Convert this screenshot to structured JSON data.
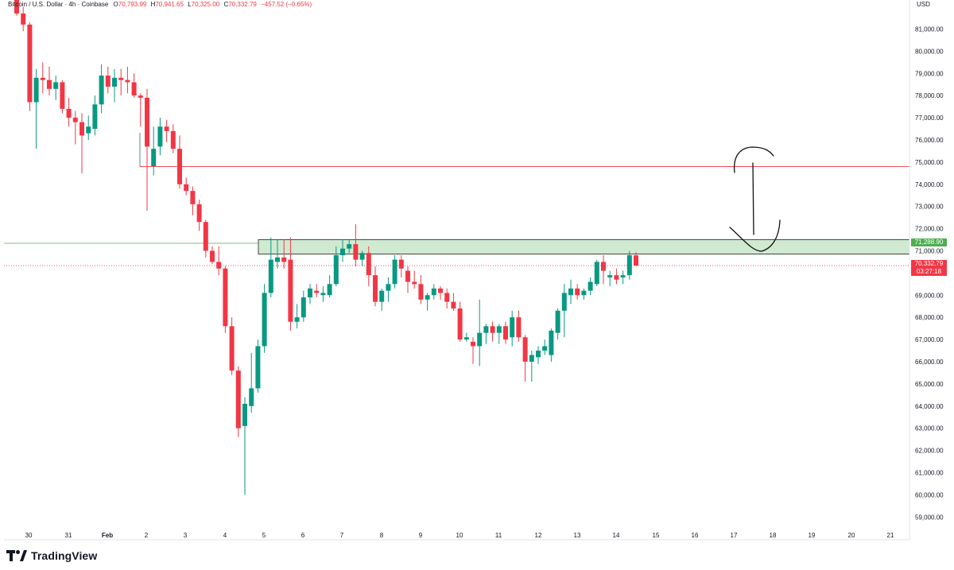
{
  "legend": {
    "symbol": "Bitcoin / U.S. Dollar · 4h · Coinbase",
    "o_label": "O",
    "o_value": "70,793.99",
    "h_label": "H",
    "h_value": "70,941.65",
    "l_label": "L",
    "l_value": "70,325.00",
    "c_label": "C",
    "c_value": "70,332.79",
    "change": "−457.52 (−0.65%)"
  },
  "currency": "USD",
  "brand": "TradingView",
  "badges": {
    "zone_price": "71,288.90",
    "last_price": "70,332.79",
    "countdown": "03:27:18"
  },
  "colors": {
    "up": "#089981",
    "down": "#f23645",
    "zone": "#c8e6c9",
    "zone_border": "#1b1b1b",
    "level": "#f23645"
  },
  "chart_data": {
    "type": "candlestick",
    "timeframe": "4h",
    "x_ticks": [
      "30",
      "31",
      "Feb",
      "2",
      "3",
      "4",
      "5",
      "6",
      "7",
      "8",
      "9",
      "10",
      "11",
      "12",
      "13",
      "14",
      "15",
      "16",
      "17",
      "18",
      "19",
      "20",
      "21"
    ],
    "y_ticks": [
      "59,000.00",
      "60,000.00",
      "61,000.00",
      "62,000.00",
      "63,000.00",
      "64,000.00",
      "65,000.00",
      "66,000.00",
      "67,000.00",
      "68,000.00",
      "69,000.00",
      "70,000.00",
      "71,000.00",
      "72,000.00",
      "73,000.00",
      "74,000.00",
      "75,000.00",
      "76,000.00",
      "77,000.00",
      "78,000.00",
      "79,000.00",
      "80,000.00",
      "81,000.00"
    ],
    "ylim": [
      58400,
      82200
    ],
    "resistance_zone": [
      70850,
      71500
    ],
    "horizontal_level": 74800,
    "last_close": 70332.79,
    "candles": [
      {
        "o": 82500,
        "h": 82800,
        "l": 81600,
        "c": 81700
      },
      {
        "o": 81700,
        "h": 82000,
        "l": 80900,
        "c": 81200
      },
      {
        "o": 81200,
        "h": 81300,
        "l": 77300,
        "c": 77700
      },
      {
        "o": 77700,
        "h": 79200,
        "l": 75600,
        "c": 78800
      },
      {
        "o": 78800,
        "h": 79500,
        "l": 78100,
        "c": 78700
      },
      {
        "o": 78700,
        "h": 79300,
        "l": 78000,
        "c": 78300
      },
      {
        "o": 78300,
        "h": 78900,
        "l": 77800,
        "c": 78600
      },
      {
        "o": 78600,
        "h": 78700,
        "l": 77200,
        "c": 77400
      },
      {
        "o": 77400,
        "h": 77900,
        "l": 76600,
        "c": 77000
      },
      {
        "o": 77000,
        "h": 77300,
        "l": 75800,
        "c": 76800
      },
      {
        "o": 76800,
        "h": 77200,
        "l": 74500,
        "c": 76200
      },
      {
        "o": 76300,
        "h": 77100,
        "l": 76000,
        "c": 76600
      },
      {
        "o": 76500,
        "h": 78000,
        "l": 76200,
        "c": 77600
      },
      {
        "o": 77600,
        "h": 79400,
        "l": 77200,
        "c": 78900
      },
      {
        "o": 78900,
        "h": 79300,
        "l": 78100,
        "c": 78400
      },
      {
        "o": 78400,
        "h": 79200,
        "l": 77700,
        "c": 78800
      },
      {
        "o": 78800,
        "h": 79200,
        "l": 78000,
        "c": 78700
      },
      {
        "o": 78700,
        "h": 79300,
        "l": 78100,
        "c": 78600
      },
      {
        "o": 78600,
        "h": 79000,
        "l": 77900,
        "c": 78000
      },
      {
        "o": 78000,
        "h": 78100,
        "l": 76600,
        "c": 77900
      },
      {
        "o": 77900,
        "h": 78300,
        "l": 72800,
        "c": 75700
      },
      {
        "o": 74800,
        "h": 76600,
        "l": 74400,
        "c": 75600
      },
      {
        "o": 75700,
        "h": 77000,
        "l": 75300,
        "c": 76600
      },
      {
        "o": 76600,
        "h": 76900,
        "l": 75900,
        "c": 76400
      },
      {
        "o": 76400,
        "h": 76700,
        "l": 75400,
        "c": 75600
      },
      {
        "o": 75600,
        "h": 76200,
        "l": 73800,
        "c": 74000
      },
      {
        "o": 74000,
        "h": 74300,
        "l": 73500,
        "c": 73700
      },
      {
        "o": 73700,
        "h": 73900,
        "l": 72600,
        "c": 73100
      },
      {
        "o": 73100,
        "h": 73300,
        "l": 71900,
        "c": 72300
      },
      {
        "o": 72300,
        "h": 72400,
        "l": 70700,
        "c": 71000
      },
      {
        "o": 71000,
        "h": 71200,
        "l": 70400,
        "c": 70500
      },
      {
        "o": 70500,
        "h": 71200,
        "l": 69900,
        "c": 70200
      },
      {
        "o": 70200,
        "h": 70300,
        "l": 67300,
        "c": 67600
      },
      {
        "o": 67600,
        "h": 68000,
        "l": 65400,
        "c": 65600
      },
      {
        "o": 65600,
        "h": 65800,
        "l": 62600,
        "c": 63000
      },
      {
        "o": 63100,
        "h": 64400,
        "l": 60000,
        "c": 64100
      },
      {
        "o": 64000,
        "h": 66400,
        "l": 63700,
        "c": 64800
      },
      {
        "o": 64800,
        "h": 67000,
        "l": 64600,
        "c": 66700
      },
      {
        "o": 66700,
        "h": 69500,
        "l": 66400,
        "c": 69100
      },
      {
        "o": 69100,
        "h": 71600,
        "l": 68900,
        "c": 70600
      },
      {
        "o": 70500,
        "h": 71500,
        "l": 70200,
        "c": 70700
      },
      {
        "o": 70700,
        "h": 71500,
        "l": 70200,
        "c": 70500
      },
      {
        "o": 70600,
        "h": 71600,
        "l": 67400,
        "c": 67800
      },
      {
        "o": 67800,
        "h": 68600,
        "l": 67500,
        "c": 68000
      },
      {
        "o": 68000,
        "h": 69200,
        "l": 67800,
        "c": 68900
      },
      {
        "o": 68900,
        "h": 69500,
        "l": 68600,
        "c": 69300
      },
      {
        "o": 69200,
        "h": 69500,
        "l": 68900,
        "c": 69100
      },
      {
        "o": 69000,
        "h": 69400,
        "l": 68700,
        "c": 69100
      },
      {
        "o": 69000,
        "h": 69900,
        "l": 68900,
        "c": 69500
      },
      {
        "o": 69500,
        "h": 71200,
        "l": 69400,
        "c": 70800
      },
      {
        "o": 70800,
        "h": 71500,
        "l": 70500,
        "c": 71100
      },
      {
        "o": 71100,
        "h": 71500,
        "l": 70900,
        "c": 71300
      },
      {
        "o": 71300,
        "h": 72200,
        "l": 70300,
        "c": 70600
      },
      {
        "o": 70600,
        "h": 71000,
        "l": 70300,
        "c": 70900
      },
      {
        "o": 70900,
        "h": 71200,
        "l": 69400,
        "c": 69900
      },
      {
        "o": 69900,
        "h": 70300,
        "l": 68500,
        "c": 68700
      },
      {
        "o": 68700,
        "h": 69300,
        "l": 68300,
        "c": 69200
      },
      {
        "o": 69200,
        "h": 69800,
        "l": 68700,
        "c": 69500
      },
      {
        "o": 69500,
        "h": 70800,
        "l": 69300,
        "c": 70600
      },
      {
        "o": 70600,
        "h": 70800,
        "l": 69800,
        "c": 70200
      },
      {
        "o": 70100,
        "h": 70300,
        "l": 69100,
        "c": 69600
      },
      {
        "o": 69600,
        "h": 70100,
        "l": 69300,
        "c": 69500
      },
      {
        "o": 69500,
        "h": 69900,
        "l": 68600,
        "c": 68800
      },
      {
        "o": 68800,
        "h": 69100,
        "l": 68300,
        "c": 69000
      },
      {
        "o": 69000,
        "h": 69500,
        "l": 68800,
        "c": 69300
      },
      {
        "o": 69300,
        "h": 69400,
        "l": 68800,
        "c": 69100
      },
      {
        "o": 69100,
        "h": 69300,
        "l": 68400,
        "c": 68700
      },
      {
        "o": 68700,
        "h": 69100,
        "l": 68300,
        "c": 68400
      },
      {
        "o": 68400,
        "h": 68700,
        "l": 66900,
        "c": 67000
      },
      {
        "o": 67000,
        "h": 67300,
        "l": 66900,
        "c": 67100
      },
      {
        "o": 66900,
        "h": 67100,
        "l": 65900,
        "c": 66700
      },
      {
        "o": 66700,
        "h": 68800,
        "l": 65800,
        "c": 67300
      },
      {
        "o": 67300,
        "h": 67700,
        "l": 66800,
        "c": 67600
      },
      {
        "o": 67600,
        "h": 67800,
        "l": 66900,
        "c": 67300
      },
      {
        "o": 67300,
        "h": 67700,
        "l": 66800,
        "c": 67600
      },
      {
        "o": 67600,
        "h": 67800,
        "l": 66800,
        "c": 67000
      },
      {
        "o": 67100,
        "h": 68300,
        "l": 66700,
        "c": 68000
      },
      {
        "o": 68000,
        "h": 68300,
        "l": 66900,
        "c": 67100
      },
      {
        "o": 67100,
        "h": 67200,
        "l": 65100,
        "c": 66000
      },
      {
        "o": 66000,
        "h": 66500,
        "l": 65100,
        "c": 66300
      },
      {
        "o": 66200,
        "h": 66700,
        "l": 65900,
        "c": 66500
      },
      {
        "o": 66500,
        "h": 67000,
        "l": 66300,
        "c": 66700
      },
      {
        "o": 66300,
        "h": 67500,
        "l": 66000,
        "c": 67400
      },
      {
        "o": 67300,
        "h": 68400,
        "l": 67000,
        "c": 68300
      },
      {
        "o": 68300,
        "h": 69500,
        "l": 67100,
        "c": 69100
      },
      {
        "o": 69000,
        "h": 69700,
        "l": 68600,
        "c": 69300
      },
      {
        "o": 69300,
        "h": 69500,
        "l": 68800,
        "c": 69000
      },
      {
        "o": 69000,
        "h": 69300,
        "l": 68800,
        "c": 69200
      },
      {
        "o": 69200,
        "h": 69800,
        "l": 69000,
        "c": 69600
      },
      {
        "o": 69500,
        "h": 70600,
        "l": 69400,
        "c": 70500
      },
      {
        "o": 70500,
        "h": 70800,
        "l": 69500,
        "c": 70100
      },
      {
        "o": 69800,
        "h": 70100,
        "l": 69400,
        "c": 69900
      },
      {
        "o": 69900,
        "h": 70200,
        "l": 69500,
        "c": 69700
      },
      {
        "o": 69800,
        "h": 70100,
        "l": 69500,
        "c": 69900
      },
      {
        "o": 69900,
        "h": 71000,
        "l": 69700,
        "c": 70800
      },
      {
        "o": 70794,
        "h": 70942,
        "l": 70325,
        "c": 70333
      }
    ]
  }
}
